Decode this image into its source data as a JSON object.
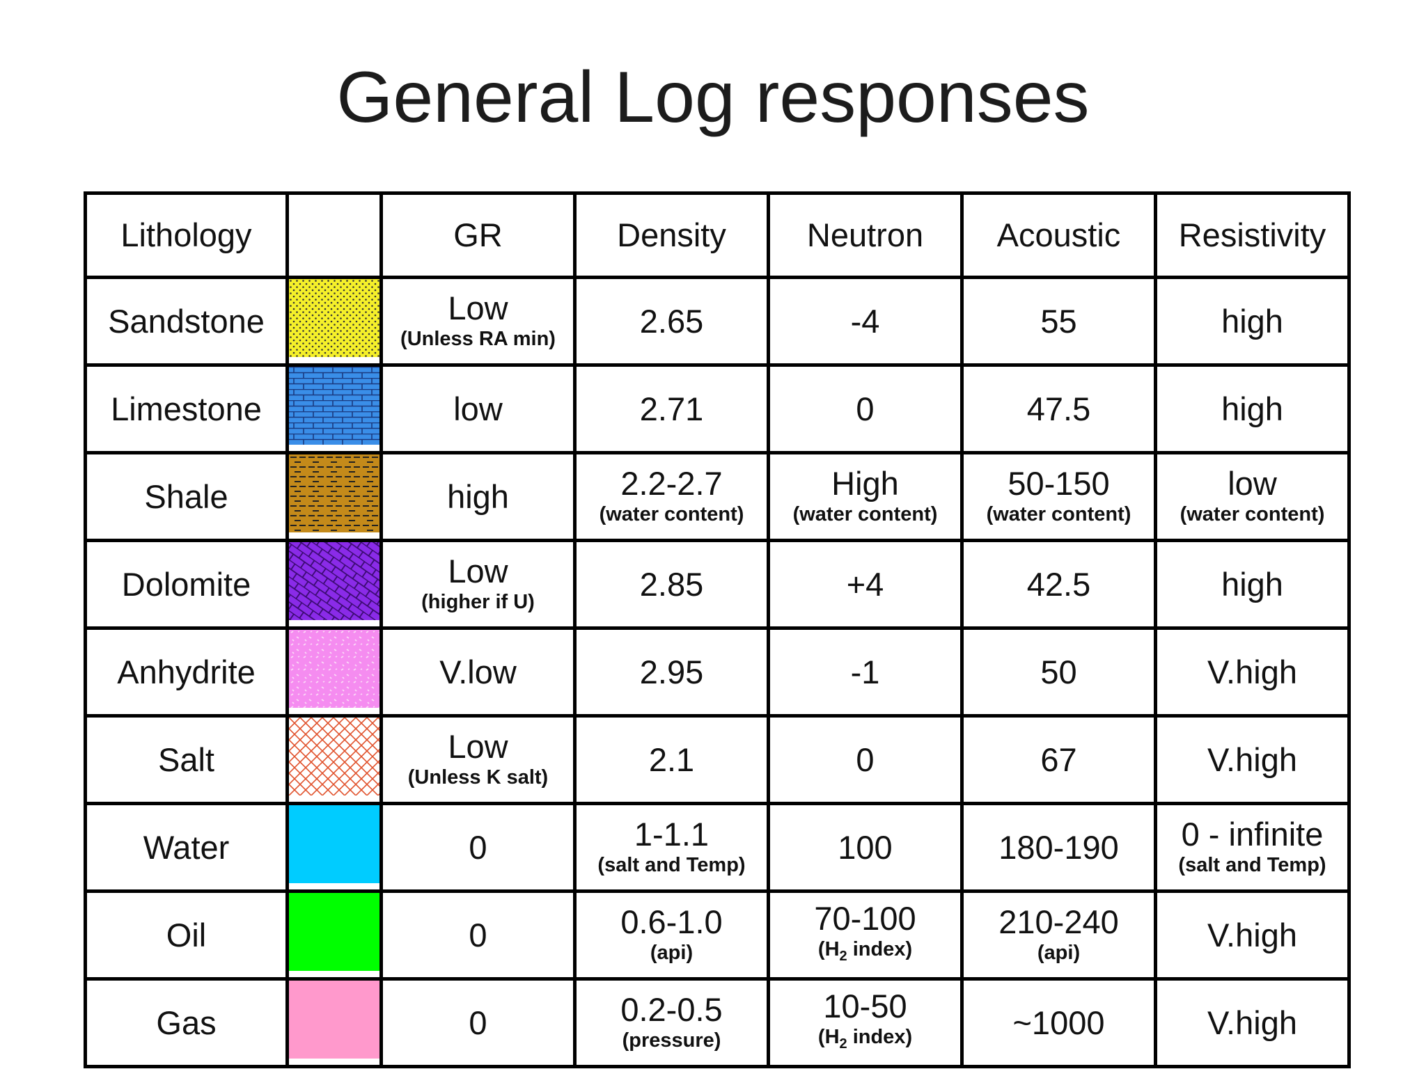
{
  "title": "General Log responses",
  "header": {
    "lithology": "Lithology",
    "swatch": "",
    "gr": "GR",
    "density": "Density",
    "neutron": "Neutron",
    "acoustic": "Acoustic",
    "resistivity": "Resistivity"
  },
  "rows": [
    {
      "lithology": "Sandstone",
      "swatch_pattern": "dots",
      "swatch_color": "#f5f02a",
      "gr": {
        "main": "Low",
        "note": "(Unless RA min)"
      },
      "density": {
        "main": "2.65",
        "note": ""
      },
      "neutron": {
        "main": "-4",
        "note": ""
      },
      "acoustic": {
        "main": "55",
        "note": ""
      },
      "resistivity": {
        "main": "high",
        "note": ""
      }
    },
    {
      "lithology": "Limestone",
      "swatch_pattern": "bricks",
      "swatch_color": "#3a8ee8",
      "gr": {
        "main": "low",
        "note": ""
      },
      "density": {
        "main": "2.71",
        "note": ""
      },
      "neutron": {
        "main": "0",
        "note": ""
      },
      "acoustic": {
        "main": "47.5",
        "note": ""
      },
      "resistivity": {
        "main": "high",
        "note": ""
      }
    },
    {
      "lithology": "Shale",
      "swatch_pattern": "dashes",
      "swatch_color": "#c48a1a",
      "gr": {
        "main": "high",
        "note": ""
      },
      "density": {
        "main": "2.2-2.7",
        "note": "(water content)"
      },
      "neutron": {
        "main": "High",
        "note": "(water content)"
      },
      "acoustic": {
        "main": "50-150",
        "note": "(water content)"
      },
      "resistivity": {
        "main": "low",
        "note": "(water content)"
      }
    },
    {
      "lithology": "Dolomite",
      "swatch_pattern": "rhombs",
      "swatch_color": "#8a2be8",
      "gr": {
        "main": "Low",
        "note": "(higher if U)"
      },
      "density": {
        "main": "2.85",
        "note": ""
      },
      "neutron": {
        "main": "+4",
        "note": ""
      },
      "acoustic": {
        "main": "42.5",
        "note": ""
      },
      "resistivity": {
        "main": "high",
        "note": ""
      }
    },
    {
      "lithology": "Anhydrite",
      "swatch_pattern": "speckle",
      "swatch_color": "#f58cf0",
      "gr": {
        "main": "V.low",
        "note": ""
      },
      "density": {
        "main": "2.95",
        "note": ""
      },
      "neutron": {
        "main": "-1",
        "note": ""
      },
      "acoustic": {
        "main": "50",
        "note": ""
      },
      "resistivity": {
        "main": "V.high",
        "note": ""
      }
    },
    {
      "lithology": "Salt",
      "swatch_pattern": "crosshatch",
      "swatch_color": "#ffffff",
      "gr": {
        "main": "Low",
        "note": "(Unless K salt)"
      },
      "density": {
        "main": "2.1",
        "note": ""
      },
      "neutron": {
        "main": "0",
        "note": ""
      },
      "acoustic": {
        "main": "67",
        "note": ""
      },
      "resistivity": {
        "main": "V.high",
        "note": ""
      }
    },
    {
      "lithology": "Water",
      "swatch_pattern": "solid",
      "swatch_color": "#00ccff",
      "gr": {
        "main": "0",
        "note": ""
      },
      "density": {
        "main": "1-1.1",
        "note": "(salt and Temp)"
      },
      "neutron": {
        "main": "100",
        "note": ""
      },
      "acoustic": {
        "main": "180-190",
        "note": ""
      },
      "resistivity": {
        "main": "0 - infinite",
        "note": "(salt and Temp)"
      }
    },
    {
      "lithology": "Oil",
      "swatch_pattern": "solid",
      "swatch_color": "#00ff00",
      "gr": {
        "main": "0",
        "note": ""
      },
      "density": {
        "main": "0.6-1.0",
        "note": "(api)"
      },
      "neutron": {
        "main": "70-100",
        "note": "(H2 index)"
      },
      "acoustic": {
        "main": "210-240",
        "note": "(api)"
      },
      "resistivity": {
        "main": "V.high",
        "note": ""
      }
    },
    {
      "lithology": "Gas",
      "swatch_pattern": "solid",
      "swatch_color": "#ff99cc",
      "gr": {
        "main": "0",
        "note": ""
      },
      "density": {
        "main": "0.2-0.5",
        "note": "(pressure)"
      },
      "neutron": {
        "main": "10-50",
        "note": "(H2 index)"
      },
      "acoustic": {
        "main": "~1000",
        "note": ""
      },
      "resistivity": {
        "main": "V.high",
        "note": ""
      }
    }
  ]
}
